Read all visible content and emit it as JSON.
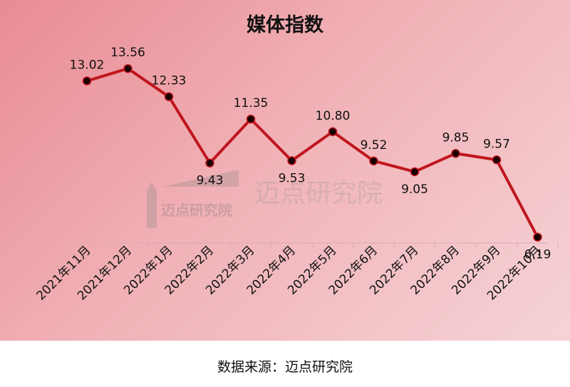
{
  "chart_data": {
    "type": "line",
    "title": "媒体指数",
    "categories": [
      "2021年11月",
      "2021年12月",
      "2022年1月",
      "2022年2月",
      "2022年3月",
      "2022年4月",
      "2022年5月",
      "2022年6月",
      "2022年7月",
      "2022年8月",
      "2022年9月",
      "2022年10月"
    ],
    "values": [
      13.02,
      13.56,
      12.33,
      9.43,
      11.35,
      9.53,
      10.8,
      9.52,
      9.05,
      9.85,
      9.57,
      6.19
    ],
    "data_labels": [
      "13.02",
      "13.56",
      "12.33",
      "9.43",
      "11.35",
      "9.53",
      "10.80",
      "9.52",
      "9.05",
      "9.85",
      "9.57",
      "6.19"
    ],
    "ylim": [
      4,
      15
    ],
    "grid": false,
    "legend": "none",
    "colors": {
      "line": "#c0161e",
      "marker": "#1a0000",
      "text": "#111111"
    }
  },
  "watermark": {
    "text": "迈点研究院",
    "logo_text": "迈点研究院"
  },
  "source": "数据来源：迈点研究院"
}
